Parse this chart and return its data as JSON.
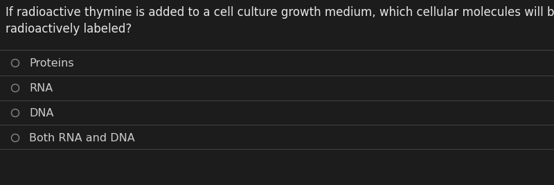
{
  "background_color": "#1c1c1c",
  "question_line1": "If radioactive thymine is added to a cell culture growth medium, which cellular molecules will be",
  "question_line2": "radioactively labeled?",
  "question_fontsize": 12,
  "question_color": "#e8e8e8",
  "options": [
    "Proteins",
    "RNA",
    "DNA",
    "Both RNA and DNA"
  ],
  "option_fontsize": 11.5,
  "option_color": "#cccccc",
  "circle_color": "#888888",
  "separator_color": "#444444",
  "separator_linewidth": 0.7,
  "fig_width": 8.0,
  "fig_height": 2.67,
  "dpi": 100
}
